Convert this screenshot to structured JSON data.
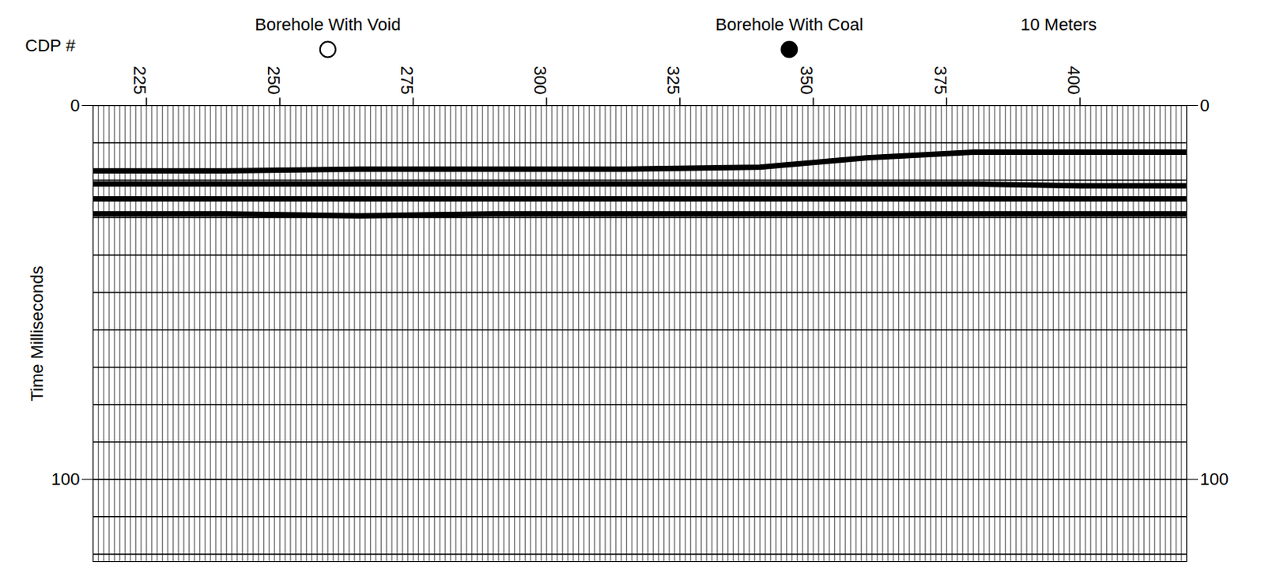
{
  "chart_data": {
    "type": "seismic",
    "xlabel": "CDP #",
    "ylabel": "Time Milliseconds",
    "xlim": [
      215,
      420
    ],
    "xticks": [
      225,
      250,
      275,
      300,
      325,
      350,
      375,
      400
    ],
    "ylim": [
      0,
      122
    ],
    "yticks": [
      0,
      100
    ],
    "y_minor_ticks": [
      0,
      10,
      20,
      30,
      40,
      50,
      60,
      70,
      80,
      90,
      100,
      110,
      120
    ],
    "grid": true,
    "x": [
      215,
      240,
      265,
      290,
      315,
      340,
      360,
      380,
      400,
      420
    ],
    "series": [
      {
        "color": "#000000",
        "values": [
          17.5,
          17.5,
          17,
          17,
          17,
          16.5,
          14,
          12.5,
          12.5,
          12.5
        ]
      },
      {
        "color": "#000000",
        "values": [
          21,
          21,
          21,
          21,
          21,
          21,
          21,
          21,
          21.5,
          21.5
        ]
      },
      {
        "color": "#000000",
        "values": [
          25,
          25,
          25,
          25,
          25,
          25,
          25,
          25,
          25,
          25
        ]
      },
      {
        "color": "#000000",
        "values": [
          29,
          29,
          29.5,
          29,
          29,
          29,
          29,
          29,
          29,
          29
        ]
      }
    ],
    "annotations": [
      {
        "text": "Borehole With Void",
        "x": 259,
        "marker": "open circle"
      },
      {
        "text": "Borehole With Coal",
        "x": 345.5,
        "marker": "filled circle"
      },
      {
        "text": "10 Meters",
        "x": 396
      }
    ]
  }
}
